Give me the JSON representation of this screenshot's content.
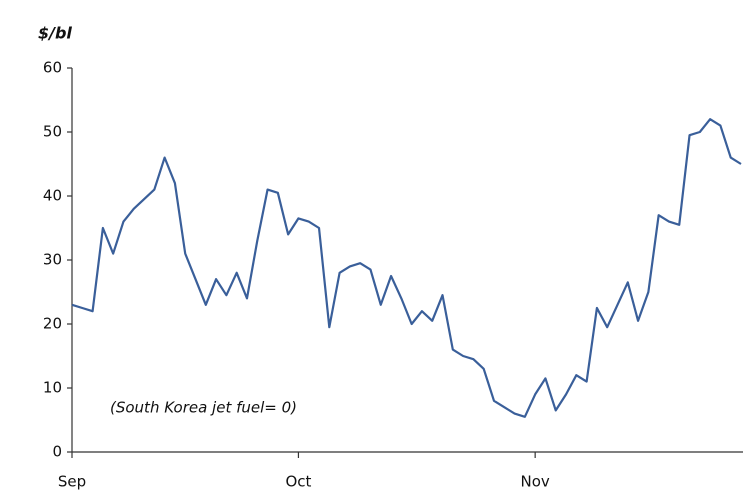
{
  "chart_data": {
    "type": "line",
    "y_label": "$/bl",
    "annotation": "(South Korea jet fuel= 0)",
    "categories": [
      "Sep",
      null,
      null,
      null,
      null,
      null,
      null,
      null,
      null,
      null,
      null,
      null,
      null,
      null,
      null,
      null,
      null,
      null,
      null,
      null,
      null,
      null,
      "Oct",
      null,
      null,
      null,
      null,
      null,
      null,
      null,
      null,
      null,
      null,
      null,
      null,
      null,
      null,
      null,
      null,
      null,
      null,
      null,
      null,
      null,
      null,
      "Nov",
      null,
      null,
      null,
      null,
      null,
      null,
      null,
      null,
      null,
      null,
      null,
      null,
      null,
      null,
      null,
      null,
      null,
      null,
      null,
      null
    ],
    "series": [
      {
        "color": "#3a5f9a",
        "values": [
          23,
          22.5,
          22,
          35,
          31,
          36,
          38,
          39.5,
          41,
          46,
          42,
          31,
          27,
          23,
          27,
          24.5,
          28,
          24,
          33,
          41,
          40.5,
          34,
          36.5,
          36,
          35,
          19.5,
          28,
          29,
          29.5,
          28.5,
          23,
          27.5,
          24,
          20,
          22,
          20.5,
          24.5,
          16,
          15,
          14.5,
          13,
          8,
          7,
          6,
          5.5,
          9,
          11.5,
          6.5,
          9,
          12,
          11,
          22.5,
          19.5,
          23,
          26.5,
          20.5,
          25,
          37,
          36,
          35.5,
          49.5,
          50,
          52,
          51,
          46,
          45
        ]
      }
    ],
    "ylim": [
      0,
      60
    ],
    "yticks": [
      0,
      10,
      20,
      30,
      40,
      50,
      60
    ],
    "grid": false
  }
}
